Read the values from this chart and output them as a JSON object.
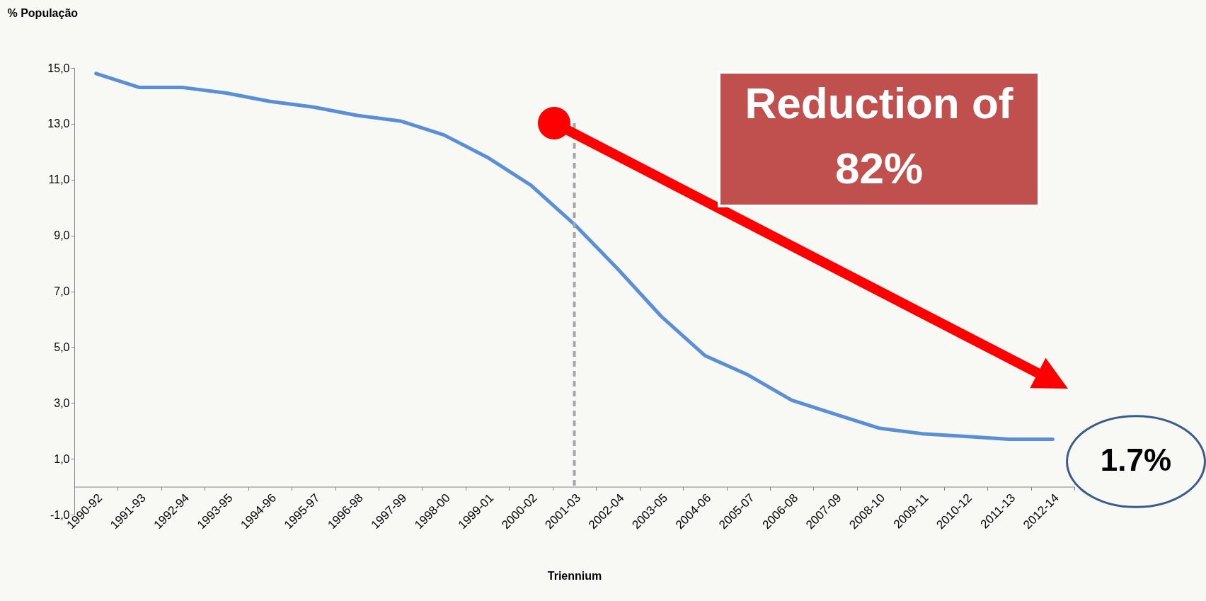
{
  "chart_data": {
    "type": "line",
    "xlabel": "Triennium",
    "ylabel": "% População",
    "categories": [
      "1990-92",
      "1991-93",
      "1992-94",
      "1993-95",
      "1994-96",
      "1995-97",
      "1996-98",
      "1997-99",
      "1998-00",
      "1999-01",
      "2000-02",
      "2001-03",
      "2002-04",
      "2003-05",
      "2004-06",
      "2005-07",
      "2006-08",
      "2007-09",
      "2008-10",
      "2009-11",
      "2010-12",
      "2011-13",
      "2012-14"
    ],
    "series": [
      {
        "color": "#5a8fd6",
        "values": [
          14.8,
          14.3,
          14.3,
          14.1,
          13.8,
          13.6,
          13.3,
          13.1,
          12.6,
          11.8,
          10.8,
          9.4,
          7.8,
          6.1,
          4.7,
          4.0,
          3.1,
          2.6,
          2.1,
          1.9,
          1.8,
          1.7,
          1.7
        ]
      }
    ],
    "ylim": [
      -1,
      15
    ],
    "yticks": [
      {
        "value": -1,
        "label": "-1,0"
      },
      {
        "value": 1,
        "label": "1,0"
      },
      {
        "value": 3,
        "label": "3,0"
      },
      {
        "value": 5,
        "label": "5,0"
      },
      {
        "value": 7,
        "label": "7,0"
      },
      {
        "value": 9,
        "label": "9,0"
      },
      {
        "value": 11,
        "label": "11,0"
      },
      {
        "value": 13,
        "label": "13,0"
      },
      {
        "value": 15,
        "label": "15,0"
      }
    ],
    "grid": false,
    "line_style": "solid",
    "marker": "none",
    "ref_lines": [
      {
        "axis": "x",
        "value": "2001-03",
        "color": "#a6a6a6",
        "line_style": "dashed"
      }
    ],
    "annotations": [
      "Reduction of 82%",
      "1.7%"
    ]
  }
}
